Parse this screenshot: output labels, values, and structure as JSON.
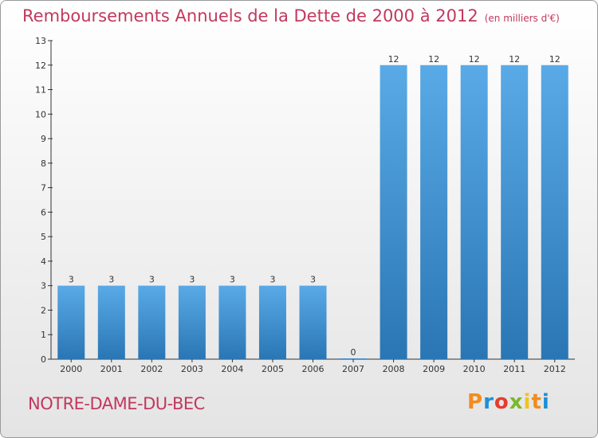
{
  "title": "Remboursements Annuels de la Dette de 2000 à 2012",
  "unit_label": "(en milliers d'€)",
  "commune": "NOTRE-DAME-DU-BEC",
  "logo": {
    "text": "Proxiti",
    "colors": [
      "#f28c1e",
      "#1e8fd6",
      "#e53c2e",
      "#79b928",
      "#f2c21e"
    ]
  },
  "colors": {
    "title": "#c2385e",
    "bar_top": "#5aaae8",
    "bar_bottom": "#2a76b4"
  },
  "chart_data": {
    "type": "bar",
    "title": "Remboursements Annuels de la Dette de 2000 à 2012",
    "xlabel": "",
    "ylabel": "en milliers d'€",
    "categories": [
      "2000",
      "2001",
      "2002",
      "2003",
      "2004",
      "2005",
      "2006",
      "2007",
      "2008",
      "2009",
      "2010",
      "2011",
      "2012"
    ],
    "values": [
      3,
      3,
      3,
      3,
      3,
      3,
      3,
      0,
      12,
      12,
      12,
      12,
      12
    ],
    "data_labels": [
      "3",
      "3",
      "3",
      "3",
      "3",
      "3",
      "3",
      "0",
      "12",
      "12",
      "12",
      "12",
      "12"
    ],
    "ylim": [
      0,
      13
    ],
    "yticks": [
      0,
      1,
      2,
      3,
      4,
      5,
      6,
      7,
      8,
      9,
      10,
      11,
      12,
      13
    ],
    "grid": false,
    "legend": "none"
  }
}
